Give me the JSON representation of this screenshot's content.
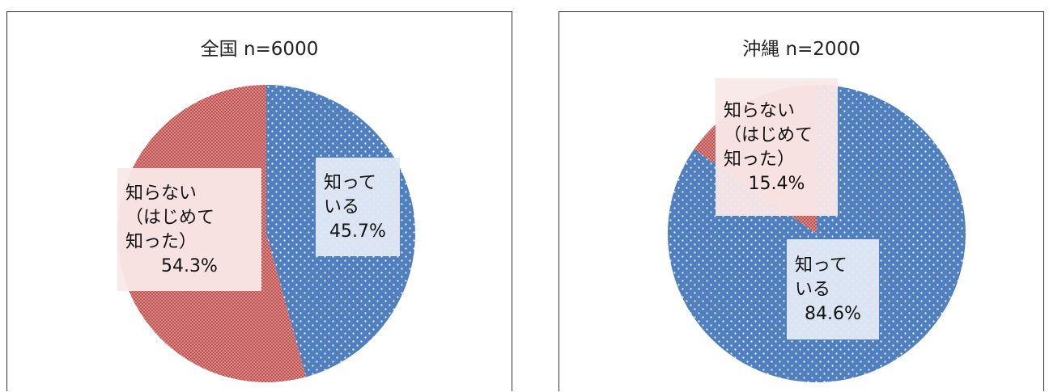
{
  "header": {
    "title": ""
  },
  "chart_data": [
    {
      "type": "pie",
      "title": "全国 n=6000",
      "slices": [
        {
          "label": "知っている",
          "value": 45.7,
          "display": "45.7%",
          "color": "#4f7fbe"
        },
        {
          "label": "知らない（はじめて知った）",
          "value": 54.3,
          "display": "54.3%",
          "color": "#c0504d"
        }
      ],
      "label_lines": [
        [
          "知って",
          "いる",
          "45.7%"
        ],
        [
          "知らない",
          "（はじめて",
          "知った）",
          "54.3%"
        ]
      ]
    },
    {
      "type": "pie",
      "title": "沖縄 n=2000",
      "slices": [
        {
          "label": "知っている",
          "value": 84.6,
          "display": "84.6%",
          "color": "#4f7fbe"
        },
        {
          "label": "知らない（はじめて知った）",
          "value": 15.4,
          "display": "15.4%",
          "color": "#c0504d"
        }
      ],
      "label_lines": [
        [
          "知って",
          "いる",
          "84.6%"
        ],
        [
          "知らない",
          "（はじめて",
          "知った）",
          "15.4%"
        ]
      ]
    }
  ]
}
